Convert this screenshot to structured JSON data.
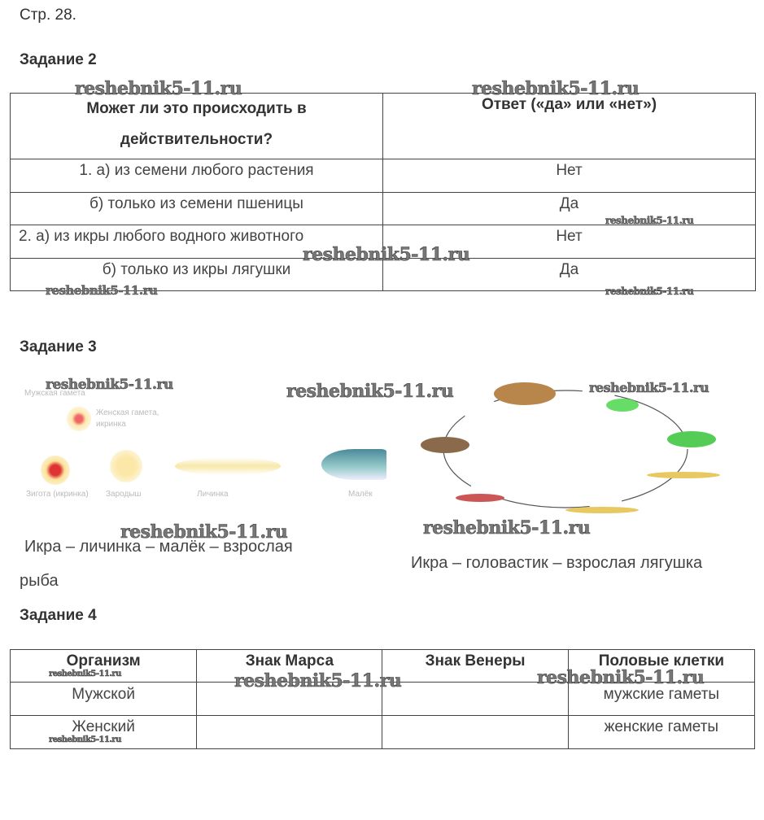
{
  "page_label": "Стр. 28.",
  "task2": {
    "heading": "Задание 2",
    "headers": [
      "Может ли это происходить в",
      "действительности?",
      "Ответ («да» или «нет»)"
    ],
    "rows": [
      {
        "q": "1.   а) из семени любого растения",
        "a": "Нет"
      },
      {
        "q": "б) только из семени пшеницы",
        "a": "Да"
      },
      {
        "q": "2.   а) из икры любого водного животного",
        "a": "Нет"
      },
      {
        "q": "б) только из икры лягушки",
        "a": "Да"
      }
    ]
  },
  "task3": {
    "heading": "Задание 3",
    "fish_labels": [
      "Мужская гамета",
      "Женская гамета,",
      "икринка",
      "Зигота (икринка)",
      "Зародыш",
      "Личинка",
      "Малёк"
    ],
    "fish_caption_1": "Икра  –  личинка  –  малёк  –  взрослая",
    "fish_caption_2": "рыба",
    "frog_caption": "Икра – головастик – взрослая лягушка"
  },
  "task4": {
    "heading": "Задание 4",
    "headers": [
      "Организм",
      "Знак Марса",
      "Знак Венеры",
      "Половые клетки"
    ],
    "rows": [
      [
        "Мужской",
        "",
        "",
        "мужские гаметы"
      ],
      [
        "Женский",
        "",
        "",
        "женские гаметы"
      ]
    ]
  },
  "watermark": "reshebnik5-11.ru"
}
